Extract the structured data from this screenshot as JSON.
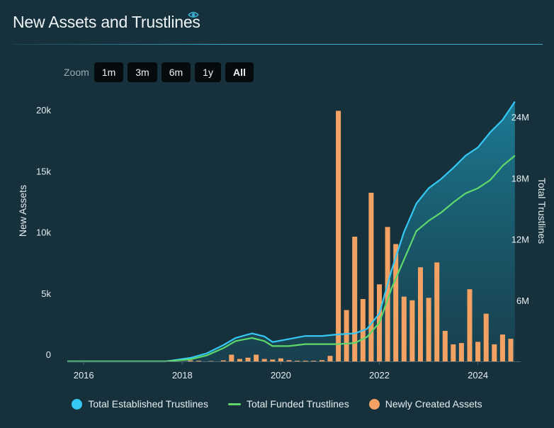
{
  "header": {
    "title": "New Assets and Trustlines",
    "info_icon": "eye-icon"
  },
  "zoom": {
    "label": "Zoom",
    "buttons": [
      "1m",
      "3m",
      "6m",
      "1y",
      "All"
    ],
    "active": "All"
  },
  "colors": {
    "background": "#16313c",
    "established": "#35c8f5",
    "funded": "#5fd86b",
    "assets": "#f4a263",
    "area_top": "#1c7f99",
    "area_bottom": "#1a4a5a",
    "accent_rule": "#3aaacd"
  },
  "legend": {
    "items": [
      {
        "label": "Total Established Trustlines",
        "color": "#35c8f5",
        "shape": "circle"
      },
      {
        "label": "Total Funded Trustlines",
        "color": "#5fd86b",
        "shape": "line"
      },
      {
        "label": "Newly Created Assets",
        "color": "#f4a263",
        "shape": "circle"
      }
    ]
  },
  "chart_data": {
    "type": "bar+line",
    "title": "New Assets and Trustlines",
    "x_ticks": [
      "2016",
      "2018",
      "2020",
      "2022",
      "2024"
    ],
    "x_range": [
      "2015-09",
      "2024-07"
    ],
    "y_left": {
      "label": "New Assets",
      "ticks": [
        "0",
        "5k",
        "10k",
        "15k",
        "20k"
      ],
      "range": [
        0,
        20000
      ]
    },
    "y_right": {
      "label": "Total Trustlines",
      "ticks": [
        "6M",
        "12M",
        "18M",
        "24M"
      ],
      "range": [
        0,
        24000000
      ]
    },
    "grid": false,
    "legend_position": "bottom",
    "series": [
      {
        "name": "Newly Created Assets",
        "axis": "left",
        "kind": "bar",
        "points": [
          [
            "2018-03",
            80
          ],
          [
            "2018-05",
            50
          ],
          [
            "2018-08",
            30
          ],
          [
            "2018-11",
            80
          ],
          [
            "2019-01",
            550
          ],
          [
            "2019-03",
            200
          ],
          [
            "2019-05",
            300
          ],
          [
            "2019-07",
            550
          ],
          [
            "2019-09",
            200
          ],
          [
            "2019-11",
            150
          ],
          [
            "2020-01",
            250
          ],
          [
            "2020-03",
            100
          ],
          [
            "2020-05",
            50
          ],
          [
            "2020-07",
            50
          ],
          [
            "2020-09",
            50
          ],
          [
            "2020-11",
            100
          ],
          [
            "2021-01",
            450
          ],
          [
            "2021-03",
            20500
          ],
          [
            "2021-05",
            4200
          ],
          [
            "2021-07",
            10200
          ],
          [
            "2021-09",
            5100
          ],
          [
            "2021-11",
            13800
          ],
          [
            "2022-01",
            6300
          ],
          [
            "2022-03",
            11000
          ],
          [
            "2022-05",
            9600
          ],
          [
            "2022-07",
            5300
          ],
          [
            "2022-09",
            5000
          ],
          [
            "2022-11",
            7700
          ],
          [
            "2023-01",
            5200
          ],
          [
            "2023-03",
            8100
          ],
          [
            "2023-05",
            2500
          ],
          [
            "2023-07",
            1400
          ],
          [
            "2023-09",
            1500
          ],
          [
            "2023-11",
            5900
          ],
          [
            "2024-01",
            1600
          ],
          [
            "2024-03",
            3900
          ],
          [
            "2024-05",
            1400
          ],
          [
            "2024-07",
            2200
          ],
          [
            "2024-09",
            1850
          ]
        ]
      },
      {
        "name": "Total Established Trustlines",
        "axis": "right",
        "kind": "area-line",
        "points": [
          [
            "2015-09",
            0
          ],
          [
            "2017-09",
            0
          ],
          [
            "2018-03",
            350000
          ],
          [
            "2018-07",
            800000
          ],
          [
            "2018-11",
            1600000
          ],
          [
            "2019-02",
            2300000
          ],
          [
            "2019-06",
            2750000
          ],
          [
            "2019-09",
            2450000
          ],
          [
            "2019-11",
            1900000
          ],
          [
            "2020-03",
            2200000
          ],
          [
            "2020-07",
            2500000
          ],
          [
            "2020-11",
            2500000
          ],
          [
            "2021-03",
            2650000
          ],
          [
            "2021-07",
            2750000
          ],
          [
            "2021-10",
            3200000
          ],
          [
            "2022-01",
            4700000
          ],
          [
            "2022-04",
            9000000
          ],
          [
            "2022-07",
            12700000
          ],
          [
            "2022-10",
            15500000
          ],
          [
            "2023-01",
            17000000
          ],
          [
            "2023-04",
            17900000
          ],
          [
            "2023-07",
            19000000
          ],
          [
            "2023-10",
            20200000
          ],
          [
            "2024-01",
            21000000
          ],
          [
            "2024-04",
            22500000
          ],
          [
            "2024-07",
            23700000
          ],
          [
            "2024-10",
            25500000
          ]
        ]
      },
      {
        "name": "Total Funded Trustlines",
        "axis": "right",
        "kind": "line",
        "points": [
          [
            "2015-09",
            0
          ],
          [
            "2017-09",
            0
          ],
          [
            "2018-03",
            200000
          ],
          [
            "2018-07",
            600000
          ],
          [
            "2018-11",
            1300000
          ],
          [
            "2019-02",
            2000000
          ],
          [
            "2019-06",
            2300000
          ],
          [
            "2019-09",
            2000000
          ],
          [
            "2019-11",
            1500000
          ],
          [
            "2020-03",
            1500000
          ],
          [
            "2020-07",
            1700000
          ],
          [
            "2020-11",
            1700000
          ],
          [
            "2021-03",
            1700000
          ],
          [
            "2021-07",
            1800000
          ],
          [
            "2021-10",
            2400000
          ],
          [
            "2022-01",
            3800000
          ],
          [
            "2022-04",
            7200000
          ],
          [
            "2022-07",
            10000000
          ],
          [
            "2022-10",
            12800000
          ],
          [
            "2023-01",
            13800000
          ],
          [
            "2023-04",
            14600000
          ],
          [
            "2023-07",
            15600000
          ],
          [
            "2023-10",
            16500000
          ],
          [
            "2024-01",
            17000000
          ],
          [
            "2024-04",
            17800000
          ],
          [
            "2024-07",
            19200000
          ],
          [
            "2024-10",
            20200000
          ]
        ]
      }
    ]
  }
}
